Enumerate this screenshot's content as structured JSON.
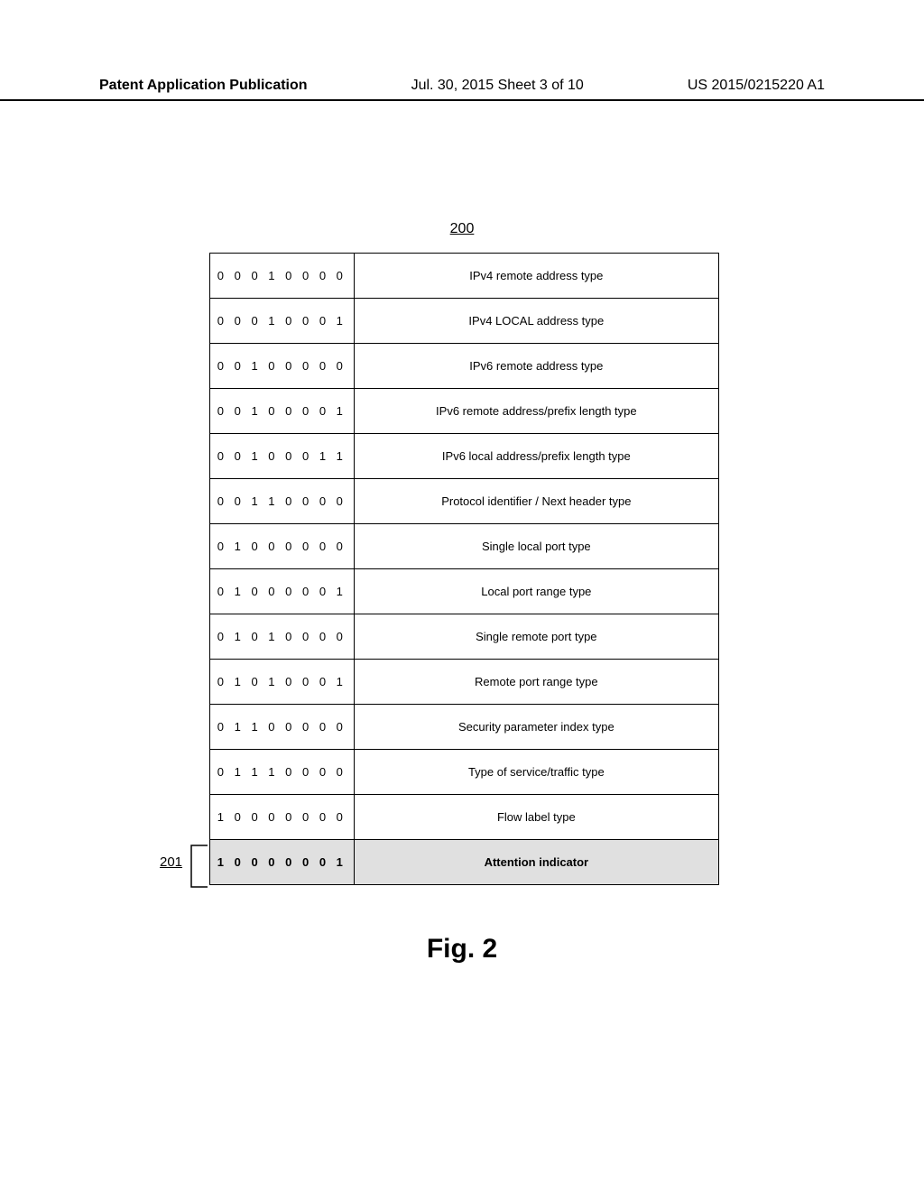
{
  "header": {
    "left": "Patent Application Publication",
    "center": "Jul. 30, 2015  Sheet 3 of 10",
    "right": "US 2015/0215220 A1"
  },
  "figure": {
    "number": "200",
    "caption": "Fig. 2",
    "highlight_row_label": "201"
  },
  "table": {
    "rows": [
      {
        "code": "0 0 0 1 0 0 0 0",
        "desc": "IPv4 remote address type",
        "highlight": false
      },
      {
        "code": "0 0 0 1 0 0 0 1",
        "desc": "IPv4 LOCAL address type",
        "highlight": false
      },
      {
        "code": "0 0 1 0 0 0 0 0",
        "desc": "IPv6 remote address type",
        "highlight": false
      },
      {
        "code": "0 0 1 0 0 0 0 1",
        "desc": "IPv6 remote address/prefix length type",
        "highlight": false
      },
      {
        "code": "0 0 1 0 0 0 1 1",
        "desc": "IPv6 local address/prefix length type",
        "highlight": false
      },
      {
        "code": "0 0 1 1 0 0 0 0",
        "desc": "Protocol identifier / Next header type",
        "highlight": false
      },
      {
        "code": "0 1 0 0 0 0 0 0",
        "desc": "Single local port type",
        "highlight": false
      },
      {
        "code": "0 1 0 0 0 0 0 1",
        "desc": "Local port range type",
        "highlight": false
      },
      {
        "code": "0 1 0 1 0 0 0 0",
        "desc": "Single remote port type",
        "highlight": false
      },
      {
        "code": "0 1 0 1 0 0 0 1",
        "desc": "Remote port range type",
        "highlight": false
      },
      {
        "code": "0 1 1 0 0 0 0 0",
        "desc": "Security parameter index type",
        "highlight": false
      },
      {
        "code": "0 1 1 1 0 0 0 0",
        "desc": "Type of service/traffic type",
        "highlight": false
      },
      {
        "code": "1 0 0 0 0 0 0 0",
        "desc": "Flow label type",
        "highlight": false
      },
      {
        "code": "1 0 0 0 0 0 0 1",
        "desc": "Attention indicator",
        "highlight": true
      }
    ]
  },
  "colors": {
    "background": "#ffffff",
    "border": "#000000",
    "highlight_bg": "#e0e0e0",
    "text": "#000000"
  }
}
